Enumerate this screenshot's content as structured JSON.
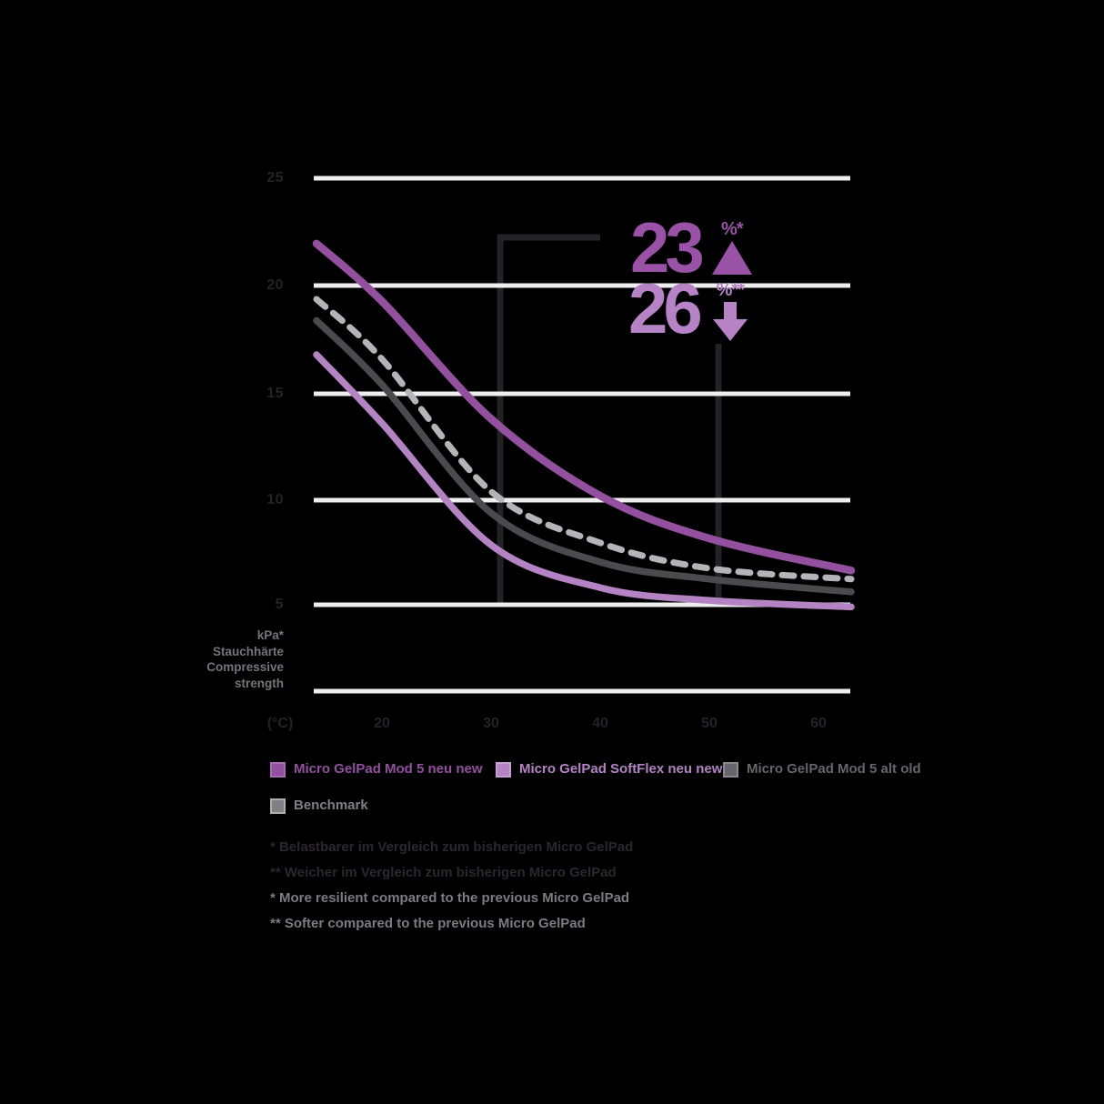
{
  "chart_data": {
    "type": "line",
    "title": "",
    "x_axis": {
      "unit_label": "(°C)",
      "tick_labels": [
        "20",
        "30",
        "40",
        "50",
        "60"
      ],
      "range": [
        10,
        63
      ]
    },
    "y_axis": {
      "title_lines": [
        "kPa*",
        "Stauchhärte",
        "Compressive",
        "strength"
      ],
      "tick_labels": [
        "25",
        "20",
        "15",
        "10",
        "5"
      ],
      "range": [
        0,
        27
      ]
    },
    "grid": true,
    "legend_position": "bottom",
    "series": [
      {
        "name": "Benchmark",
        "color": "#b5b4b7",
        "line_style": "dashed",
        "points": [
          [
            14,
            19.3
          ],
          [
            20,
            16.5
          ],
          [
            30,
            10.3
          ],
          [
            40,
            7.9
          ],
          [
            50,
            6.7
          ],
          [
            63,
            6.2
          ]
        ]
      },
      {
        "name": "Micro GelPad Mod 5 alt old",
        "color": "#4b4b4d",
        "line_style": "solid",
        "points": [
          [
            14,
            18.3
          ],
          [
            20,
            15.3
          ],
          [
            30,
            9.3
          ],
          [
            40,
            7.0
          ],
          [
            50,
            6.2
          ],
          [
            63,
            5.6
          ]
        ]
      },
      {
        "name": "Micro GelPad SoftFlex neu new",
        "color": "#b383c3",
        "line_style": "solid",
        "points": [
          [
            14,
            16.7
          ],
          [
            20,
            13.5
          ],
          [
            30,
            7.8
          ],
          [
            40,
            5.8
          ],
          [
            50,
            5.2
          ],
          [
            63,
            4.9
          ]
        ]
      },
      {
        "name": "Micro GelPad Mod 5 neu new",
        "color": "#93509f",
        "line_style": "solid",
        "points": [
          [
            14,
            21.9
          ],
          [
            20,
            19.2
          ],
          [
            30,
            13.7
          ],
          [
            40,
            10.1
          ],
          [
            50,
            8.1
          ],
          [
            63,
            6.6
          ]
        ]
      }
    ],
    "annotations": [
      {
        "value": "23",
        "unit": "%*",
        "direction": "up",
        "color": "#9a52a6"
      },
      {
        "value": "26",
        "unit": "%**",
        "direction": "down",
        "color": "#b583c6"
      }
    ]
  },
  "legend": {
    "items": [
      {
        "label": "Micro GelPad Mod 5 neu new",
        "color": "#93509f",
        "border": "#a96cb4"
      },
      {
        "label": "Micro GelPad SoftFlex neu new",
        "color": "#b383c3",
        "border": "#c79ed4"
      },
      {
        "label": "Micro GelPad Mod 5 alt old",
        "color": "#66656a",
        "border": "#8a898d"
      },
      {
        "label": "Benchmark",
        "color": "#807f84",
        "border": "#aeadb1"
      }
    ]
  },
  "footnotes": [
    {
      "text": "* Belastbarer im Vergleich zum bisherigen Micro GelPad",
      "color": "#2a282c"
    },
    {
      "text": "** Weicher im Vergleich zum bisherigen Micro GelPad",
      "color": "#2a282c"
    },
    {
      "text": "* More resilient compared to the previous Micro GelPad",
      "color": "#7c7b7f"
    },
    {
      "text": "** Softer compared to the previous Micro GelPad",
      "color": "#7c7b7f"
    }
  ]
}
